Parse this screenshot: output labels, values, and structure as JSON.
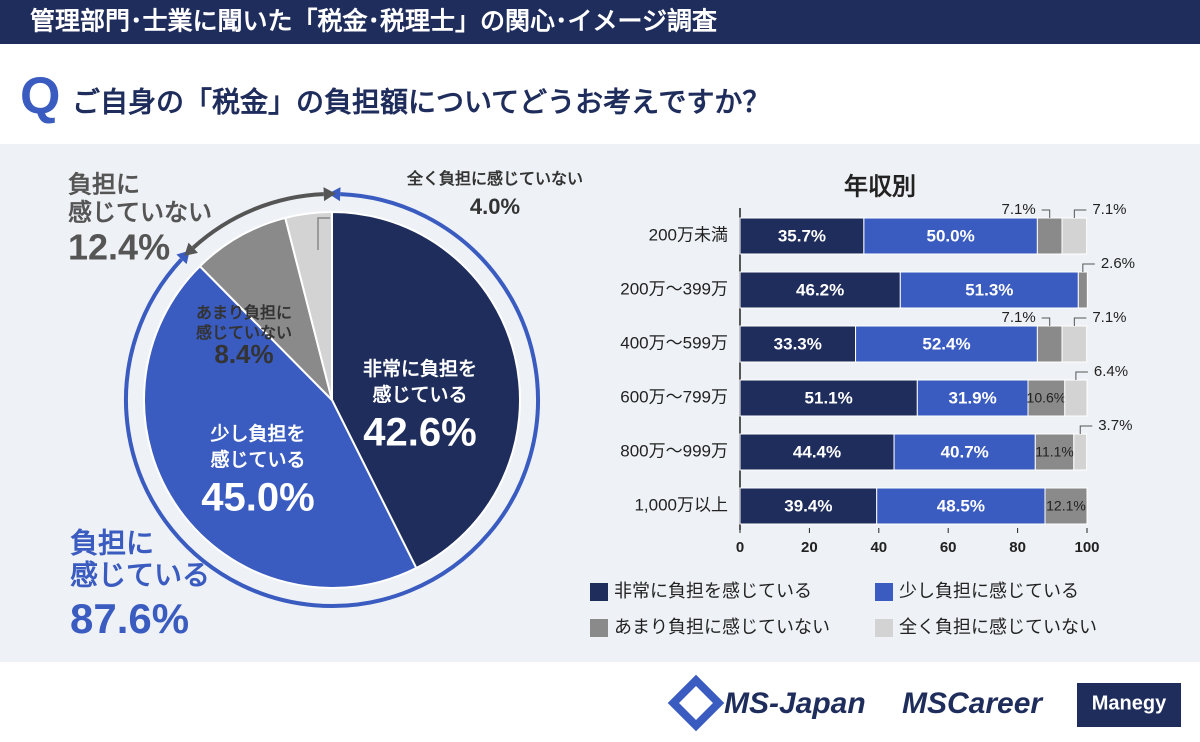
{
  "header": {
    "title": "管理部門･士業に聞いた「税金･税理士」の関心･イメージ調査",
    "q": "Q",
    "question": "ご自身の「税金」の負担額についてどうお考えですか？"
  },
  "chart_data": [
    {
      "type": "pie",
      "labels": [
        [
          "非常に負担を",
          "感じている"
        ],
        [
          "少し負担を",
          "感じている"
        ],
        [
          "あまり負担に",
          "感じていない"
        ],
        [
          "全く負担に感じていない"
        ]
      ],
      "values": [
        42.6,
        45.0,
        8.4,
        4.0
      ],
      "value_labels": [
        "42.6%",
        "45.0%",
        "8.4%",
        "4.0%"
      ],
      "colors": [
        "#1f2d5c",
        "#3a5bbf",
        "#8a8a8a",
        "#d3d3d3"
      ],
      "annotations": [
        {
          "label": [
            "負担に",
            "感じている"
          ],
          "value": 87.6,
          "value_label": "87.6%",
          "color": "#3a5bbf"
        },
        {
          "label": [
            "負担に",
            "感じていない"
          ],
          "value": 12.4,
          "value_label": "12.4%",
          "color": "#555555"
        }
      ]
    },
    {
      "type": "stacked-bar-horizontal",
      "title": "年収別",
      "categories": [
        "200万未満",
        "200万～399万",
        "400万～599万",
        "600万～799万",
        "800万～999万",
        "1,000万以上"
      ],
      "series": [
        {
          "name": "非常に負担を感じている",
          "color": "#1f2d5c",
          "values": [
            35.7,
            46.2,
            33.3,
            51.1,
            44.4,
            39.4
          ],
          "value_labels": [
            "35.7%",
            "46.2%",
            "33.3%",
            "51.1%",
            "44.4%",
            "39.4%"
          ]
        },
        {
          "name": "少し負担に感じている",
          "color": "#3a5bbf",
          "values": [
            50.0,
            51.3,
            52.4,
            31.9,
            40.7,
            48.5
          ],
          "value_labels": [
            "50.0%",
            "51.3%",
            "52.4%",
            "31.9%",
            "40.7%",
            "48.5%"
          ]
        },
        {
          "name": "あまり負担に感じていない",
          "color": "#8a8a8a",
          "values": [
            7.1,
            2.6,
            7.1,
            10.6,
            11.1,
            12.1
          ],
          "value_labels": [
            "7.1%",
            "2.6%",
            "7.1%",
            "10.6%",
            "11.1%",
            "12.1%"
          ]
        },
        {
          "name": "全く負担に感じていない",
          "color": "#d3d3d3",
          "values": [
            7.1,
            null,
            7.1,
            6.4,
            3.7,
            null
          ],
          "value_labels": [
            "7.1%",
            null,
            "7.1%",
            "6.4%",
            "3.7%",
            null
          ]
        }
      ],
      "xlim": [
        0,
        100
      ],
      "xticks": [
        0,
        20,
        40,
        60,
        80,
        100
      ]
    }
  ],
  "footer": {
    "logos": [
      "MS-Japan",
      "MSCareer",
      "Manegy"
    ]
  }
}
